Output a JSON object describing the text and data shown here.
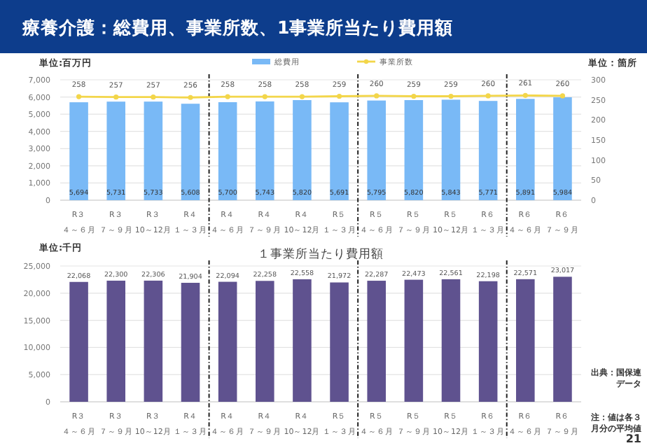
{
  "chart_data": [
    {
      "type": "bar",
      "title": "療養介護：総費用、事業所数、1事業所当たり費用額",
      "ylabel": "単位:百万円",
      "y2label": "単位：箇所",
      "categories": [
        "R３４～６月",
        "R３７～９月",
        "R３10～12月",
        "R４１～３月",
        "R４４～６月",
        "R４７～９月",
        "R４10～12月",
        "R５１～３月",
        "R５４～６月",
        "R５７～９月",
        "R５10～12月",
        "R６１～３月",
        "R６４～６月",
        "R６７～９月"
      ],
      "series": [
        {
          "name": "総費用",
          "type": "bar",
          "color": "#79b9f6",
          "values": [
            5694,
            5731,
            5733,
            5608,
            5700,
            5743,
            5820,
            5691,
            5795,
            5820,
            5843,
            5771,
            5891,
            5984
          ],
          "value_labels": [
            "5,694",
            "5,731",
            "5,733",
            "5,608",
            "5,700",
            "5,743",
            "5,820",
            "5,691",
            "5,795",
            "5,820",
            "5,843",
            "5,771",
            "5,891",
            "5,984"
          ]
        },
        {
          "name": "事業所数",
          "type": "line",
          "axis": "y2",
          "color": "#f3d64a",
          "marker": "circle",
          "values": [
            258,
            257,
            257,
            256,
            258,
            258,
            258,
            259,
            260,
            259,
            259,
            260,
            261,
            260
          ],
          "value_labels": [
            "258",
            "257",
            "257",
            "256",
            "258",
            "258",
            "258",
            "259",
            "260",
            "259",
            "259",
            "260",
            "261",
            "260"
          ]
        }
      ],
      "ylim": [
        0,
        7000
      ],
      "yticks": [
        0,
        {
          "value": 1000,
          "label": "1,000"
        },
        {
          "value": 2000,
          "label": "2,000"
        },
        {
          "value": 3000,
          "label": "3,000"
        },
        {
          "value": 4000,
          "label": "4,000"
        },
        {
          "value": 5000,
          "label": "5,000"
        },
        {
          "value": 6000,
          "label": "6,000"
        },
        {
          "value": 7000,
          "label": "7,000"
        }
      ],
      "y2lim": [
        0,
        300
      ],
      "y2ticks": [
        0,
        50,
        100,
        150,
        200,
        250,
        300
      ],
      "grid": "y",
      "legend": "top"
    },
    {
      "type": "bar",
      "title": "１事業所当たり費用額",
      "ylabel": "単位:千円",
      "categories": [
        "R３４～６月",
        "R３７～９月",
        "R３10～12月",
        "R４１～３月",
        "R４４～６月",
        "R４７～９月",
        "R４10～12月",
        "R５１～３月",
        "R５４～６月",
        "R５７～９月",
        "R５10～12月",
        "R６１～３月",
        "R６４～６月",
        "R６７～９月"
      ],
      "series": [
        {
          "color": "#5f528f",
          "values": [
            22068,
            22300,
            22306,
            21904,
            22094,
            22258,
            22558,
            21972,
            22287,
            22473,
            22561,
            22198,
            22571,
            23017
          ],
          "value_labels": [
            "22,068",
            "22,300",
            "22,306",
            "21,904",
            "22,094",
            "22,258",
            "22,558",
            "21,972",
            "22,287",
            "22,473",
            "22,561",
            "22,198",
            "22,571",
            "23,017"
          ]
        }
      ],
      "ylim": [
        0,
        25000
      ],
      "yticks": [
        0,
        {
          "value": 5000,
          "label": "5,000"
        },
        {
          "value": 10000,
          "label": "10,000"
        },
        {
          "value": 15000,
          "label": "15,000"
        },
        {
          "value": 20000,
          "label": "20,000"
        },
        {
          "value": 25000,
          "label": "25,000"
        }
      ],
      "grid": "y",
      "annotations": [
        "出典：国保連データ",
        "注：値は各３月分の平均値",
        "21"
      ]
    }
  ]
}
